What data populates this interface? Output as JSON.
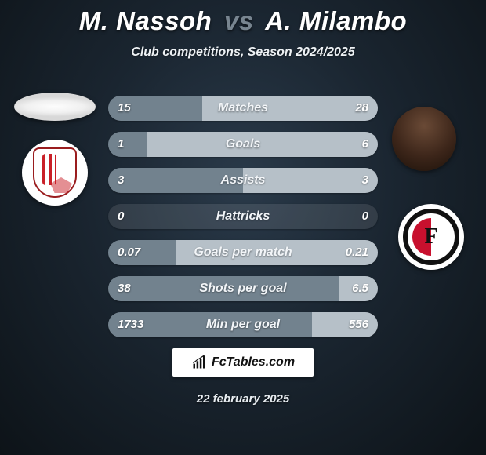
{
  "title": {
    "player1": "M. Nassoh",
    "vs": "vs",
    "player2": "A. Milambo"
  },
  "subtitle": "Club competitions, Season 2024/2025",
  "colors": {
    "bar1": "#72828e",
    "bar2": "#b6c0c8",
    "track": "rgba(255,255,255,0.10)"
  },
  "stats": [
    {
      "label": "Matches",
      "v1": "15",
      "v2": "28",
      "w1": 34.9,
      "w2": 65.1
    },
    {
      "label": "Goals",
      "v1": "1",
      "v2": "6",
      "w1": 14.3,
      "w2": 85.7
    },
    {
      "label": "Assists",
      "v1": "3",
      "v2": "3",
      "w1": 50.0,
      "w2": 50.0
    },
    {
      "label": "Hattricks",
      "v1": "0",
      "v2": "0",
      "w1": 0.0,
      "w2": 0.0
    },
    {
      "label": "Goals per match",
      "v1": "0.07",
      "v2": "0.21",
      "w1": 25.0,
      "w2": 75.0
    },
    {
      "label": "Shots per goal",
      "v1": "38",
      "v2": "6.5",
      "w1": 85.4,
      "w2": 14.6
    },
    {
      "label": "Min per goal",
      "v1": "1733",
      "v2": "556",
      "w1": 75.7,
      "w2": 24.3
    }
  ],
  "brand": "FcTables.com",
  "date": "22 february 2025",
  "sides": {
    "player1_avatar": "blank-oval",
    "player1_logo": "sparta-rotterdam",
    "player2_avatar": "player-headshot",
    "player2_logo": "feyenoord"
  }
}
